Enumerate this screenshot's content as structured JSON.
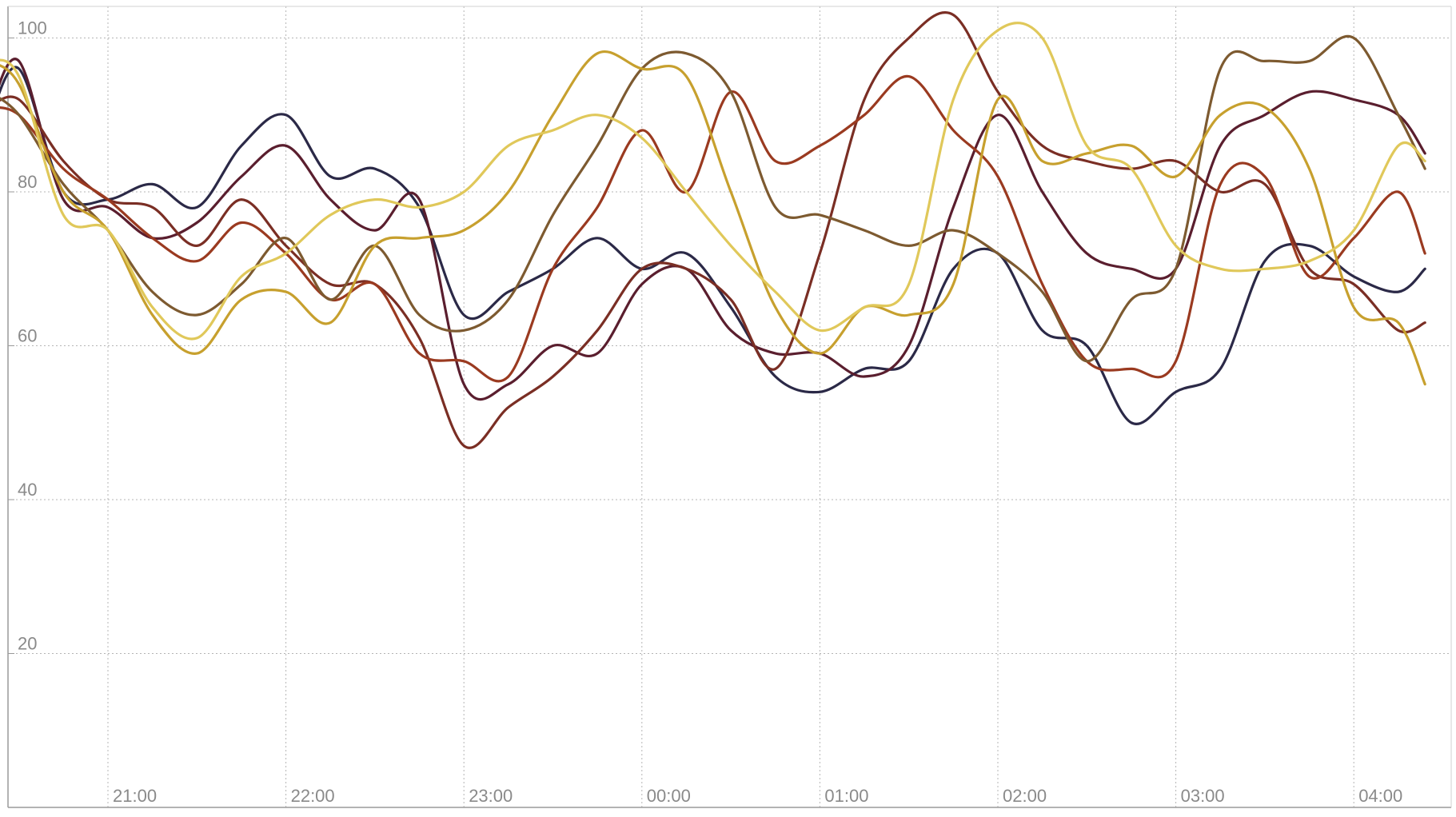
{
  "chart_data": {
    "type": "line",
    "title": "",
    "xlabel": "",
    "ylabel": "",
    "x_ticks": [
      "21:00",
      "22:00",
      "23:00",
      "00:00",
      "01:00",
      "02:00",
      "03:00",
      "04:00"
    ],
    "y_ticks": [
      20,
      40,
      60,
      80,
      100
    ],
    "ylim": [
      0,
      104
    ],
    "grid": true,
    "legend": "none",
    "x_hours": [
      20.33,
      20.5,
      20.75,
      21.0,
      21.25,
      21.5,
      21.75,
      22.0,
      22.25,
      22.5,
      22.75,
      23.0,
      23.25,
      23.5,
      23.75,
      24.0,
      24.25,
      24.5,
      24.75,
      25.0,
      25.25,
      25.5,
      25.75,
      26.0,
      26.25,
      26.5,
      26.75,
      27.0,
      27.25,
      27.5,
      27.75,
      28.0,
      28.25,
      28.4
    ],
    "series": [
      {
        "color": "#2b2947",
        "values": [
          89,
          96,
          80,
          79,
          81,
          78,
          86,
          90,
          82,
          83,
          78,
          64,
          67,
          70,
          74,
          70,
          72,
          65,
          56,
          54,
          57,
          58,
          70,
          72,
          62,
          60,
          50,
          54,
          57,
          71,
          73,
          69,
          67,
          70
        ]
      },
      {
        "color": "#5a1e2e",
        "values": [
          90,
          97,
          79,
          78,
          74,
          76,
          82,
          86,
          79,
          75,
          79,
          55,
          55,
          60,
          59,
          68,
          70,
          62,
          59,
          59,
          56,
          60,
          78,
          90,
          80,
          72,
          70,
          70,
          86,
          90,
          93,
          92,
          90,
          85
        ]
      },
      {
        "color": "#7a2e24",
        "values": [
          91,
          92,
          84,
          79,
          78,
          73,
          79,
          73,
          68,
          68,
          61,
          47,
          52,
          56,
          62,
          70,
          70,
          66,
          57,
          72,
          92,
          100,
          103,
          93,
          86,
          84,
          83,
          84,
          80,
          81,
          70,
          68,
          62,
          63
        ]
      },
      {
        "color": "#9a3a20",
        "values": [
          91,
          90,
          83,
          79,
          74,
          71,
          76,
          72,
          66,
          68,
          59,
          58,
          56,
          70,
          78,
          88,
          80,
          93,
          84,
          86,
          90,
          95,
          88,
          82,
          68,
          58,
          57,
          58,
          81,
          82,
          69,
          74,
          80,
          72
        ]
      },
      {
        "color": "#7d5a30",
        "values": [
          93,
          90,
          81,
          75,
          67,
          64,
          68,
          74,
          66,
          73,
          64,
          62,
          66,
          77,
          86,
          96,
          98,
          93,
          78,
          77,
          75,
          73,
          75,
          72,
          67,
          58,
          66,
          70,
          96,
          97,
          97,
          100,
          90,
          83
        ]
      },
      {
        "color": "#c7a02e",
        "values": [
          97,
          94,
          80,
          75,
          64,
          59,
          66,
          67,
          63,
          73,
          74,
          75,
          80,
          90,
          98,
          96,
          95,
          80,
          65,
          59,
          65,
          64,
          68,
          92,
          84,
          85,
          86,
          82,
          90,
          91,
          83,
          65,
          63,
          55
        ]
      },
      {
        "color": "#e0c85a",
        "values": [
          97,
          95,
          77,
          75,
          65,
          61,
          69,
          72,
          77,
          79,
          78,
          80,
          86,
          88,
          90,
          87,
          80,
          73,
          67,
          62,
          65,
          68,
          92,
          101,
          100,
          86,
          83,
          73,
          70,
          70,
          71,
          75,
          86,
          84
        ]
      }
    ]
  }
}
